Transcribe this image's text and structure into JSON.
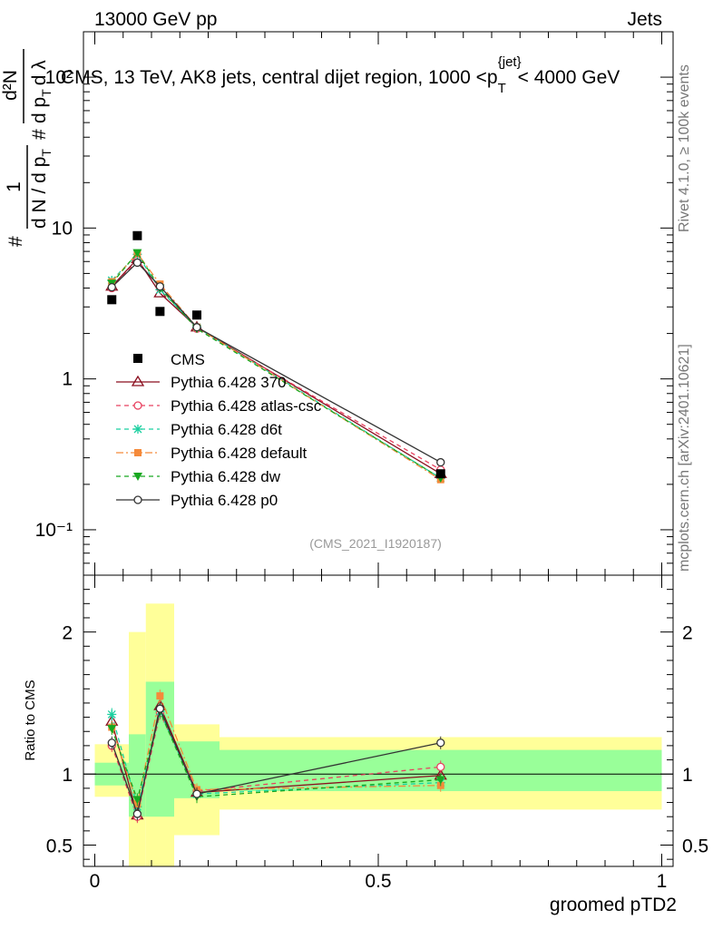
{
  "header": {
    "energy_label": "13000 GeV pp",
    "category_label": "Jets"
  },
  "side_labels": {
    "rivet": "Rivet 4.1.0, ≥ 100k events",
    "source": "mcplots.cern.ch [arXiv:2401.10621]"
  },
  "chart_data": {
    "type": "scatter",
    "title": "CMS, 13 TeV, AK8 jets, central dijet region, 1000 <p_T^{jet}< 4000 GeV",
    "title_parts": {
      "main": "CMS, 13 TeV, AK8 jets, central dijet region, 1000 <p",
      "sub": "T",
      "sup": "{jet}",
      "tail": "< 4000 GeV"
    },
    "watermark": "(CMS_2021_I1920187)",
    "xlabel": "groomed pTD2",
    "ylabel": "1/dN/dp_T d²N/dp_T dλ",
    "ylabel_parts": {
      "num1": "#",
      "frac1_num": "1",
      "frac1_den": "d N / d p",
      "num2": "#",
      "frac2_num": "d²N",
      "frac2_den": "d p",
      "sub_t": "T",
      "dlambda": "d λ"
    },
    "ratio_ylabel": "Ratio to CMS",
    "xlim": [
      -0.02,
      1.02
    ],
    "ylim_log": [
      0.05,
      200
    ],
    "ratio_ylim": [
      0.35,
      2.4
    ],
    "x_ticks": [
      0,
      0.5,
      1
    ],
    "x_tick_labels": [
      "0",
      "0.5",
      "1"
    ],
    "y_ticks": [
      0.1,
      1,
      10,
      100
    ],
    "y_tick_labels": [
      "10⁻¹",
      "1",
      "10",
      "10²"
    ],
    "ratio_ticks": [
      0.5,
      1,
      2
    ],
    "ratio_tick_labels": [
      "0.5",
      "1",
      "2"
    ],
    "bins": [
      {
        "lo": 0.0,
        "hi": 0.06
      },
      {
        "lo": 0.06,
        "hi": 0.09
      },
      {
        "lo": 0.09,
        "hi": 0.14
      },
      {
        "lo": 0.14,
        "hi": 0.22
      },
      {
        "lo": 0.22,
        "hi": 1.0
      }
    ],
    "x": [
      0.03,
      0.075,
      0.115,
      0.18,
      0.61
    ],
    "data_series": {
      "name": "CMS",
      "values": [
        3.35,
        8.9,
        2.8,
        2.65,
        0.235
      ],
      "band_green": [
        [
          0.92,
          1.08
        ],
        [
          0.7,
          1.28
        ],
        [
          0.7,
          1.65
        ],
        [
          0.83,
          1.23
        ],
        [
          0.88,
          1.17
        ]
      ],
      "band_yellow": [
        [
          0.84,
          1.21
        ],
        [
          0.35,
          2.0
        ],
        [
          0.35,
          2.2
        ],
        [
          0.57,
          1.35
        ],
        [
          0.75,
          1.26
        ]
      ]
    },
    "series": [
      {
        "name": "Pythia 6.428 370",
        "color": "#8b0f1f",
        "dash": "",
        "marker": "triangle-open",
        "values": [
          4.1,
          6.25,
          3.7,
          2.2,
          0.235
        ],
        "ratio": [
          1.37,
          0.71,
          1.48,
          0.87,
          0.99
        ]
      },
      {
        "name": "Pythia 6.428 atlas-csc",
        "color": "#e8415f",
        "dash": "5,4",
        "marker": "circle-open",
        "values": [
          4.0,
          6.1,
          4.0,
          2.15,
          0.25
        ],
        "ratio": [
          1.2,
          0.7,
          1.43,
          0.88,
          1.05
        ]
      },
      {
        "name": "Pythia 6.428 d6t",
        "color": "#1bd0a0",
        "dash": "5,4",
        "marker": "asterisk",
        "values": [
          4.5,
          6.7,
          3.9,
          2.2,
          0.22
        ],
        "ratio": [
          1.42,
          0.77,
          1.44,
          0.86,
          0.94
        ]
      },
      {
        "name": "Pythia 6.428 default",
        "color": "#f58a3a",
        "dash": "8,3,2,3",
        "marker": "square-filled",
        "values": [
          4.4,
          6.8,
          4.25,
          2.2,
          0.215
        ],
        "ratio": [
          1.33,
          0.79,
          1.55,
          0.89,
          0.92
        ]
      },
      {
        "name": "Pythia 6.428 dw",
        "color": "#18a820",
        "dash": "5,4",
        "marker": "triangle-down-filled",
        "values": [
          4.3,
          6.85,
          4.0,
          2.15,
          0.22
        ],
        "ratio": [
          1.32,
          0.82,
          1.44,
          0.84,
          0.96
        ]
      },
      {
        "name": "Pythia 6.428 p0",
        "color": "#333333",
        "dash": "",
        "marker": "circle-open",
        "values": [
          4.05,
          5.9,
          4.1,
          2.2,
          0.28
        ],
        "ratio": [
          1.22,
          0.72,
          1.46,
          0.86,
          1.22
        ]
      }
    ]
  }
}
